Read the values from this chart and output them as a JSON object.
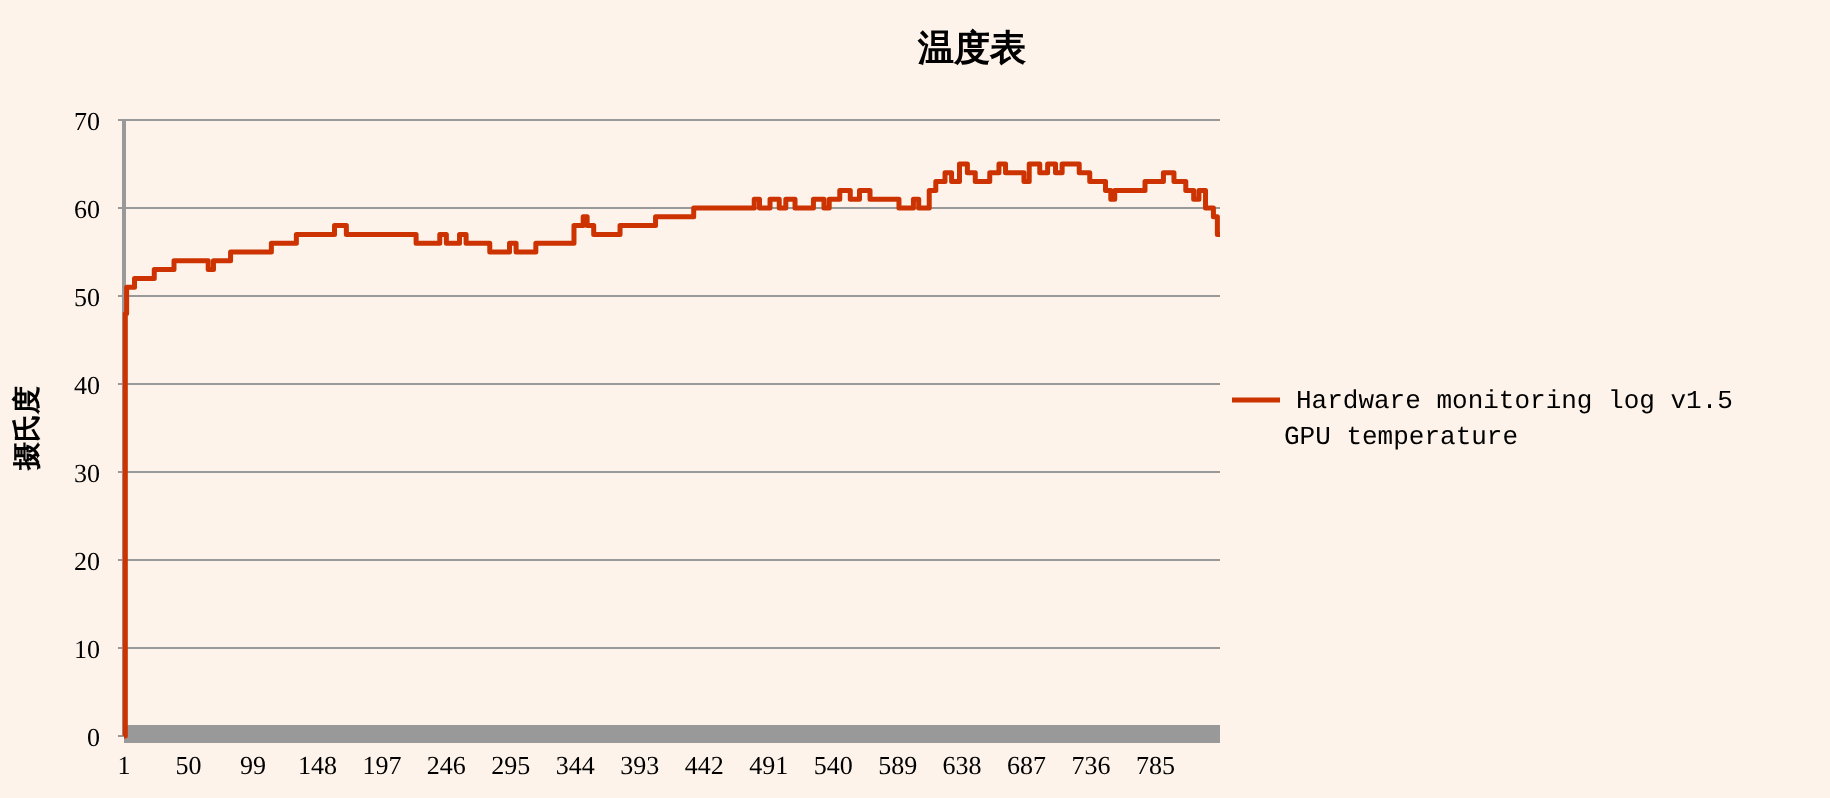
{
  "chart_data": {
    "type": "step",
    "title": "温度表",
    "ylabel": "摄氏度",
    "xlim": [
      1,
      834
    ],
    "xticks": [
      1,
      50,
      99,
      148,
      197,
      246,
      295,
      344,
      393,
      442,
      491,
      540,
      589,
      638,
      687,
      736,
      785
    ],
    "ylim": [
      0,
      70
    ],
    "yticks": [
      0,
      10,
      20,
      30,
      40,
      50,
      60,
      70
    ],
    "grid": "y",
    "legend": "right",
    "series": [
      {
        "name": "Hardware monitoring log v1.5 GPU temperature",
        "color": "#cc3300",
        "x": [
          1,
          2,
          3,
          9,
          24,
          39,
          65,
          69,
          82,
          113,
          132,
          161,
          170,
          223,
          241,
          246,
          256,
          261,
          279,
          294,
          299,
          314,
          343,
          350,
          353,
          358,
          378,
          405,
          434,
          480,
          484,
          492,
          499,
          504,
          511,
          525,
          533,
          537,
          545,
          553,
          560,
          568,
          590,
          601,
          605,
          613,
          618,
          625,
          630,
          636,
          642,
          648,
          659,
          666,
          671,
          685,
          689,
          697,
          703,
          709,
          714,
          727,
          735,
          747,
          751,
          754,
          777,
          791,
          799,
          808,
          814,
          818,
          823,
          829,
          832,
          834
        ],
        "values": [
          0,
          48,
          51,
          52,
          53,
          54,
          53,
          54,
          55,
          56,
          57,
          58,
          57,
          56,
          57,
          56,
          57,
          56,
          55,
          56,
          55,
          56,
          58,
          59,
          58,
          57,
          58,
          59,
          60,
          61,
          60,
          61,
          60,
          61,
          60,
          61,
          60,
          61,
          62,
          61,
          62,
          61,
          60,
          61,
          60,
          62,
          63,
          64,
          63,
          65,
          64,
          63,
          64,
          65,
          64,
          63,
          65,
          64,
          65,
          64,
          65,
          64,
          63,
          62,
          61,
          62,
          63,
          64,
          63,
          62,
          61,
          62,
          60,
          59,
          57,
          57
        ]
      }
    ]
  }
}
